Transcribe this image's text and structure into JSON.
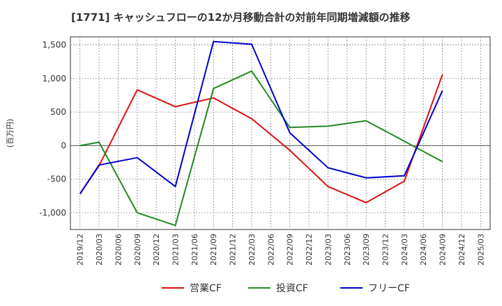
{
  "chart_data": {
    "type": "line",
    "title": "[1771]  キャッシュフローの12か月移動合計の対前年同期増減額の推移",
    "ylabel": "(百万円)",
    "xlabel": "",
    "ylim": [
      -1250,
      1620
    ],
    "yticks": [
      1500,
      1000,
      500,
      0,
      -500,
      -1000
    ],
    "ytick_labels": [
      "1,500",
      "1,000",
      "500",
      "0",
      "-500",
      "-1,000"
    ],
    "categories": [
      "2019/12",
      "2020/03",
      "2020/06",
      "2020/09",
      "2020/12",
      "2021/03",
      "2021/06",
      "2021/09",
      "2021/12",
      "2022/03",
      "2022/06",
      "2022/09",
      "2022/12",
      "2023/03",
      "2023/06",
      "2023/09",
      "2023/12",
      "2024/03",
      "2024/06",
      "2024/09",
      "2024/12",
      "2025/03"
    ],
    "grid": true,
    "legend_position": "bottom-center",
    "series": [
      {
        "name": "営業CF",
        "color": "#dd1111",
        "values": [
          -720,
          -300,
          null,
          830,
          null,
          580,
          null,
          710,
          null,
          400,
          null,
          -70,
          null,
          -610,
          null,
          -850,
          null,
          -530,
          null,
          1060,
          null,
          null
        ]
      },
      {
        "name": "投資CF",
        "color": "#228822",
        "values": [
          0,
          50,
          null,
          -1000,
          null,
          -1190,
          null,
          850,
          null,
          1110,
          null,
          270,
          null,
          290,
          null,
          370,
          null,
          null,
          null,
          -240,
          null,
          null
        ]
      },
      {
        "name": "フリーCF",
        "color": "#0000cc",
        "values": [
          -720,
          -290,
          null,
          -180,
          null,
          -610,
          null,
          1550,
          null,
          1510,
          null,
          190,
          null,
          -330,
          null,
          -480,
          null,
          -450,
          null,
          820,
          null,
          null
        ]
      }
    ]
  }
}
